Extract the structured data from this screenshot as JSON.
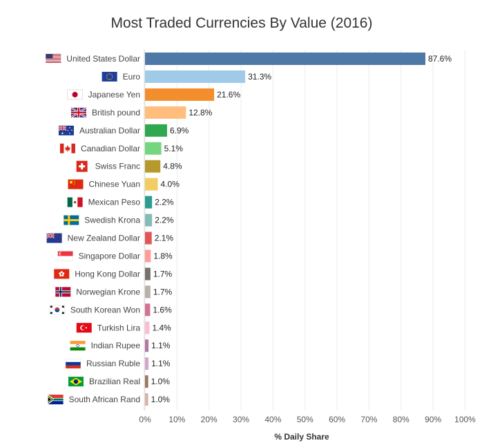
{
  "chart_data": {
    "type": "bar",
    "orientation": "horizontal",
    "title": "Most Traded Currencies By Value (2016)",
    "xlabel": "% Daily Share",
    "ylabel": "",
    "xlim": [
      0,
      100
    ],
    "xticks": [
      "0%",
      "10%",
      "20%",
      "30%",
      "40%",
      "50%",
      "60%",
      "70%",
      "80%",
      "90%",
      "100%"
    ],
    "grid": "vertical",
    "value_format": "percent-1dp",
    "categories": [
      "United States Dollar",
      "Euro",
      "Japanese Yen",
      "British pound",
      "Australian Dollar",
      "Canadian Dollar",
      "Swiss Franc",
      "Chinese Yuan",
      "Mexican Peso",
      "Swedish Krona",
      "New Zealand Dollar",
      "Singapore Dollar",
      "Hong Kong Dollar",
      "Norwegian Krone",
      "South Korean Won",
      "Turkish Lira",
      "Indian Rupee",
      "Russian Ruble",
      "Brazilian Real",
      "South African Rand"
    ],
    "values": [
      87.6,
      31.3,
      21.6,
      12.8,
      6.9,
      5.1,
      4.8,
      4.0,
      2.2,
      2.2,
      2.1,
      1.8,
      1.7,
      1.7,
      1.6,
      1.4,
      1.1,
      1.1,
      1.0,
      1.0
    ],
    "value_labels": [
      "87.6%",
      "31.3%",
      "21.6%",
      "12.8%",
      "6.9%",
      "5.1%",
      "4.8%",
      "4.0%",
      "2.2%",
      "2.2%",
      "2.1%",
      "1.8%",
      "1.7%",
      "1.7%",
      "1.6%",
      "1.4%",
      "1.1%",
      "1.1%",
      "1.0%",
      "1.0%"
    ],
    "colors": [
      "#4e79a7",
      "#a0cbe8",
      "#f28e2b",
      "#ffbe7d",
      "#2fa84f",
      "#74d67e",
      "#b6992d",
      "#f1ce63",
      "#2a9d8f",
      "#86bcb6",
      "#e15759",
      "#ff9d9a",
      "#79706e",
      "#bab0ac",
      "#d37295",
      "#fabfd2",
      "#b07aa1",
      "#d4a6c8",
      "#9d7660",
      "#d7b5a6"
    ],
    "flag_icons": [
      "flag-usa-icon",
      "flag-eu-icon",
      "flag-japan-icon",
      "flag-uk-icon",
      "flag-australia-icon",
      "flag-canada-icon",
      "flag-switzerland-icon",
      "flag-china-icon",
      "flag-mexico-icon",
      "flag-sweden-icon",
      "flag-new-zealand-icon",
      "flag-singapore-icon",
      "flag-hong-kong-icon",
      "flag-norway-icon",
      "flag-south-korea-icon",
      "flag-turkey-icon",
      "flag-india-icon",
      "flag-russia-icon",
      "flag-brazil-icon",
      "flag-south-africa-icon"
    ]
  }
}
